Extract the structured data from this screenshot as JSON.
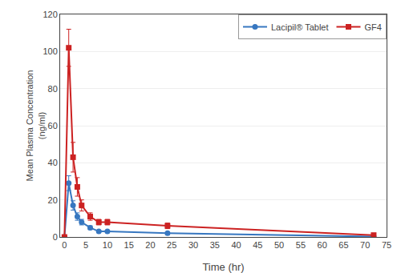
{
  "chart_data": {
    "type": "line",
    "xlabel": "Time (hr)",
    "ylabel": "Mean Plasma Concentration\n(ng/ml)",
    "series": [
      {
        "name": "Lacipil® Tablet",
        "color": "#3777c0",
        "marker": "circle",
        "x": [
          0,
          1,
          2,
          3,
          4,
          6,
          8,
          10,
          24,
          72
        ],
        "values": [
          0,
          29,
          17,
          11,
          8,
          5,
          3,
          3,
          2,
          0.2
        ],
        "errors": [
          0,
          4,
          2.5,
          2,
          1.5,
          1,
          0.6,
          0.5,
          0.8,
          0.1
        ]
      },
      {
        "name": "GF4",
        "color": "#cc2222",
        "marker": "square",
        "x": [
          0,
          1,
          2,
          3,
          4,
          6,
          8,
          10,
          24,
          72
        ],
        "values": [
          0,
          102,
          43,
          27,
          17,
          11,
          8,
          8,
          6,
          1
        ],
        "errors": [
          0,
          10,
          8,
          5,
          3,
          2,
          1.5,
          1.5,
          1.5,
          0.3
        ]
      }
    ],
    "xlim": [
      -1,
      75
    ],
    "ylim": [
      0,
      120
    ],
    "xticks": [
      0,
      5,
      10,
      15,
      20,
      25,
      30,
      35,
      40,
      45,
      50,
      55,
      60,
      65,
      70,
      75
    ],
    "yticks": [
      0,
      20,
      40,
      60,
      80,
      100,
      120
    ],
    "grid": "y",
    "legend": "upper right"
  }
}
